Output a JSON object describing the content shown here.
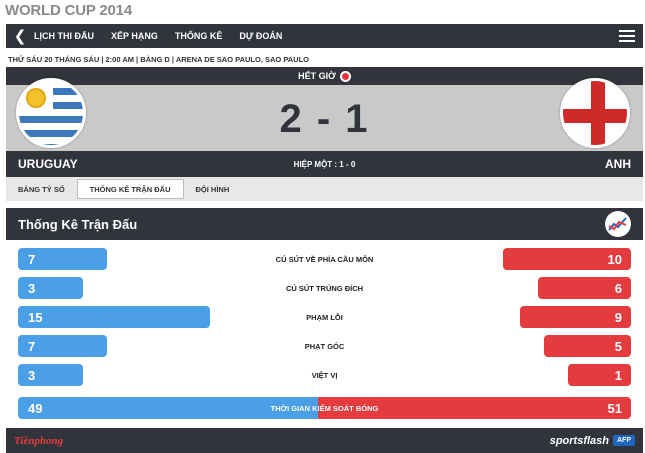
{
  "page_title": "WORLD CUP 2014",
  "nav": {
    "items": [
      "LỊCH THI ĐẤU",
      "XẾP HẠNG",
      "THỐNG KÊ",
      "DỰ ĐOÁN"
    ]
  },
  "match_info": "THỨ SÁU 20 THÁNG SÁU | 2:00 AM | BẢNG D | ARENA DE SAO PAULO, SAO PAULO",
  "match": {
    "status": "HẾT GIỜ",
    "score": "2 - 1",
    "home_team": "URUGUAY",
    "away_team": "ANH",
    "halftime": "HIỆP MỘT : 1 - 0"
  },
  "tabs": [
    "BẢNG TỶ SỐ",
    "THỐNG KÊ TRẬN ĐẤU",
    "ĐỘI HÌNH"
  ],
  "active_tab": 1,
  "section_title": "Thống Kê Trận Đấu",
  "stats": [
    {
      "label": "CÚ SÚT VỀ PHÍA CẦU MÔN",
      "home": "7",
      "away": "10"
    },
    {
      "label": "CÚ SÚT TRÚNG ĐÍCH",
      "home": "3",
      "away": "6"
    },
    {
      "label": "PHẠM LỖI",
      "home": "15",
      "away": "9"
    },
    {
      "label": "PHẠT GÓC",
      "home": "7",
      "away": "5"
    },
    {
      "label": "VIỆT VỊ",
      "home": "3",
      "away": "1"
    },
    {
      "label": "THỜI GIAN KIỂM SOÁT BÓNG",
      "home": "49",
      "away": "51"
    }
  ],
  "footer": {
    "left_logo": "Tiềnphong",
    "right_logo": "sportsflash",
    "agency": "AFP"
  },
  "colors": {
    "dark": "#31353b",
    "home_bar": "#4a9fe6",
    "away_bar": "#e33b3e",
    "score_bg": "#c9c9c9"
  }
}
